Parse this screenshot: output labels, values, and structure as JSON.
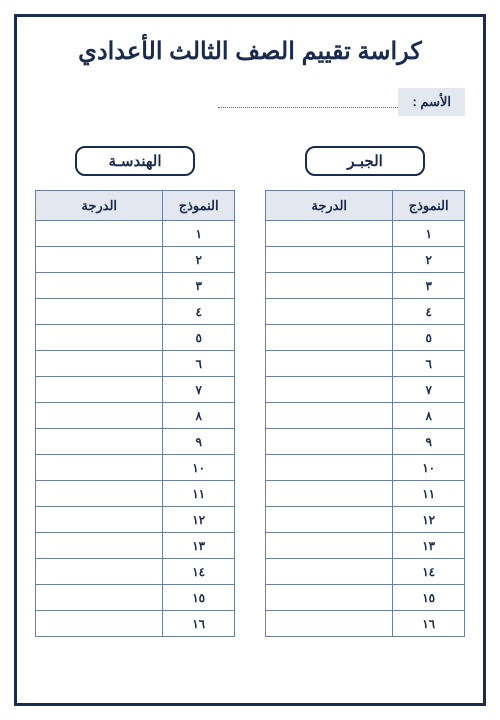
{
  "colors": {
    "border": "#1a2b4d",
    "text": "#1a2b4d",
    "header_bg": "#e2e7f0",
    "name_bg": "#e2e7f0",
    "grid": "#6b7ea3",
    "dotted": "#5a6b8c",
    "background": "#ffffff"
  },
  "title": "كراسة تقييم الصف الثالث الأعدادي",
  "name_label": "الأسم :",
  "sections": {
    "right": {
      "label": "الجبـر"
    },
    "left": {
      "label": "الهندسـة"
    }
  },
  "columns": {
    "model": "النموذج",
    "grade": "الدرجة"
  },
  "rows": [
    "١",
    "٢",
    "٣",
    "٤",
    "٥",
    "٦",
    "٧",
    "٨",
    "٩",
    "١٠",
    "١١",
    "١٢",
    "١٣",
    "١٤",
    "١٥",
    "١٦"
  ]
}
